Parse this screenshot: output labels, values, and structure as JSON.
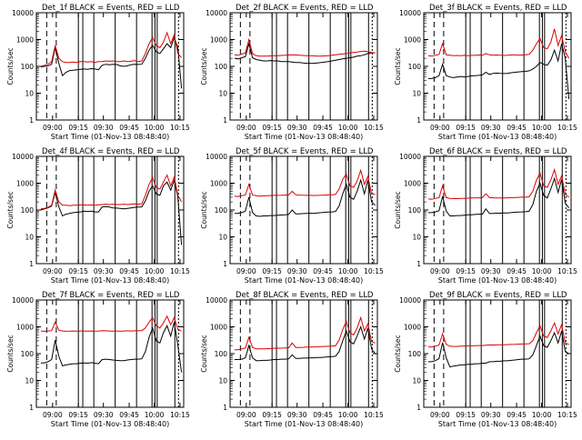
{
  "figure": {
    "ylabel": "Counts/sec",
    "xlabel": "Start Time (01-Nov-13 08:48:40)",
    "x_ticks": [
      "09:00",
      "09:15",
      "09:30",
      "09:45",
      "10:00",
      "10:15"
    ],
    "y_ticks": [
      "1",
      "10",
      "100",
      "1000",
      "10000"
    ],
    "colors": {
      "events": "#000000",
      "lld": "#dd0000",
      "axes": "#000000",
      "background": "#ffffff"
    }
  },
  "chart_data": [
    {
      "type": "line",
      "title": "Det_1f BLACK = Events, RED = LLD",
      "ylim": [
        1,
        10000
      ],
      "yscale": "log",
      "series": [
        {
          "name": "Events",
          "values": [
            95,
            100,
            105,
            120,
            500,
            130,
            45,
            60,
            70,
            72,
            75,
            78,
            80,
            78,
            82,
            80,
            75,
            110,
            120,
            115,
            120,
            118,
            105,
            100,
            105,
            115,
            120,
            118,
            120,
            200,
            400,
            600,
            350,
            300,
            450,
            700,
            500,
            1200,
            500,
            15
          ]
        },
        {
          "name": "LLD",
          "values": [
            100,
            110,
            120,
            150,
            600,
            200,
            150,
            140,
            140,
            145,
            140,
            150,
            150,
            145,
            150,
            140,
            150,
            150,
            160,
            155,
            160,
            150,
            150,
            160,
            150,
            155,
            165,
            150,
            160,
            300,
            700,
            1200,
            600,
            500,
            800,
            1800,
            700,
            1500,
            300,
            210
          ]
        }
      ]
    },
    {
      "type": "line",
      "title": "Det_2f BLACK = Events, RED = LLD",
      "ylim": [
        1,
        10000
      ],
      "yscale": "log",
      "series": [
        {
          "name": "Events",
          "values": [
            200,
            190,
            210,
            230,
            700,
            210,
            180,
            170,
            160,
            160,
            165,
            160,
            160,
            150,
            150,
            150,
            145,
            140,
            140,
            135,
            130,
            130,
            130,
            135,
            140,
            145,
            150,
            160,
            170,
            180,
            190,
            200,
            210,
            220,
            240,
            250,
            270,
            300,
            320,
            320
          ]
        },
        {
          "name": "LLD",
          "values": [
            270,
            260,
            290,
            310,
            1000,
            300,
            250,
            240,
            240,
            240,
            245,
            250,
            250,
            255,
            260,
            265,
            270,
            265,
            260,
            255,
            250,
            250,
            245,
            240,
            240,
            245,
            250,
            260,
            270,
            280,
            290,
            300,
            320,
            330,
            340,
            360,
            370,
            350,
            330,
            320
          ]
        }
      ]
    },
    {
      "type": "line",
      "title": "Det_3f BLACK = Events, RED = LLD",
      "ylim": [
        1,
        10000
      ],
      "yscale": "log",
      "series": [
        {
          "name": "Events",
          "values": [
            35,
            35,
            38,
            45,
            120,
            45,
            40,
            38,
            40,
            42,
            40,
            42,
            44,
            45,
            46,
            48,
            60,
            50,
            55,
            56,
            55,
            54,
            55,
            58,
            60,
            62,
            64,
            65,
            68,
            80,
            100,
            140,
            120,
            110,
            170,
            400,
            160,
            700,
            200,
            6
          ]
        },
        {
          "name": "LLD",
          "values": [
            250,
            240,
            260,
            280,
            700,
            270,
            260,
            250,
            255,
            250,
            260,
            250,
            255,
            260,
            265,
            260,
            300,
            270,
            260,
            265,
            260,
            255,
            260,
            265,
            270,
            260,
            265,
            270,
            280,
            400,
            700,
            1100,
            500,
            450,
            800,
            2500,
            600,
            1400,
            350,
            200
          ]
        }
      ]
    },
    {
      "type": "line",
      "title": "Det_4f BLACK = Events, RED = LLD",
      "ylim": [
        1,
        10000
      ],
      "yscale": "log",
      "series": [
        {
          "name": "Events",
          "values": [
            100,
            110,
            120,
            140,
            450,
            130,
            60,
            70,
            75,
            80,
            82,
            85,
            90,
            88,
            90,
            85,
            85,
            130,
            135,
            130,
            120,
            118,
            115,
            110,
            115,
            120,
            125,
            128,
            130,
            220,
            500,
            800,
            400,
            350,
            800,
            1100,
            550,
            1300,
            300,
            5
          ]
        },
        {
          "name": "LLD",
          "values": [
            110,
            115,
            125,
            150,
            550,
            200,
            150,
            150,
            145,
            150,
            150,
            155,
            155,
            150,
            155,
            150,
            155,
            160,
            165,
            160,
            165,
            160,
            160,
            165,
            160,
            165,
            170,
            165,
            170,
            350,
            900,
            1600,
            700,
            600,
            1100,
            2000,
            800,
            1700,
            350,
            200
          ]
        }
      ]
    },
    {
      "type": "line",
      "title": "Det_5f BLACK = Events, RED = LLD",
      "ylim": [
        1,
        10000
      ],
      "yscale": "log",
      "series": [
        {
          "name": "Events",
          "values": [
            75,
            75,
            80,
            90,
            300,
            80,
            60,
            58,
            60,
            60,
            62,
            62,
            64,
            65,
            66,
            68,
            100,
            72,
            72,
            74,
            75,
            76,
            75,
            78,
            80,
            82,
            84,
            85,
            88,
            140,
            400,
            900,
            300,
            250,
            500,
            1300,
            400,
            1300,
            200,
            150
          ]
        },
        {
          "name": "LLD",
          "values": [
            330,
            320,
            340,
            360,
            900,
            360,
            340,
            330,
            335,
            340,
            345,
            350,
            350,
            355,
            360,
            365,
            500,
            370,
            360,
            355,
            350,
            350,
            345,
            350,
            355,
            360,
            365,
            370,
            380,
            600,
            1400,
            2200,
            800,
            700,
            1200,
            3000,
            900,
            1800,
            400,
            380
          ]
        }
      ]
    },
    {
      "type": "line",
      "title": "Det_6f BLACK = Events, RED = LLD",
      "ylim": [
        1,
        10000
      ],
      "yscale": "log",
      "series": [
        {
          "name": "Events",
          "values": [
            80,
            80,
            85,
            95,
            320,
            90,
            60,
            60,
            62,
            62,
            64,
            66,
            66,
            68,
            70,
            70,
            110,
            74,
            75,
            76,
            76,
            77,
            78,
            80,
            82,
            84,
            85,
            86,
            90,
            160,
            500,
            1000,
            350,
            280,
            600,
            1500,
            450,
            1400,
            180,
            120
          ]
        },
        {
          "name": "LLD",
          "values": [
            260,
            250,
            270,
            290,
            800,
            290,
            270,
            265,
            265,
            270,
            270,
            275,
            280,
            280,
            285,
            290,
            400,
            290,
            285,
            280,
            280,
            280,
            285,
            290,
            290,
            295,
            300,
            300,
            310,
            500,
            1300,
            2400,
            800,
            700,
            1300,
            3200,
            900,
            1900,
            380,
            300
          ]
        }
      ]
    },
    {
      "type": "line",
      "title": "Det_7f BLACK = Events, RED = LLD",
      "ylim": [
        1,
        10000
      ],
      "yscale": "log",
      "series": [
        {
          "name": "Events",
          "values": [
            45,
            45,
            50,
            60,
            320,
            80,
            35,
            38,
            40,
            42,
            42,
            44,
            45,
            44,
            46,
            44,
            42,
            60,
            62,
            60,
            58,
            56,
            55,
            55,
            58,
            60,
            62,
            62,
            64,
            120,
            400,
            900,
            300,
            250,
            600,
            1100,
            450,
            1500,
            200,
            20
          ]
        },
        {
          "name": "LLD",
          "values": [
            700,
            680,
            700,
            720,
            1500,
            750,
            700,
            680,
            690,
            700,
            690,
            700,
            700,
            690,
            700,
            690,
            700,
            720,
            710,
            700,
            690,
            700,
            690,
            700,
            710,
            700,
            710,
            720,
            720,
            900,
            1500,
            2200,
            1100,
            900,
            1400,
            2500,
            1200,
            2200,
            800,
            700
          ]
        }
      ]
    },
    {
      "type": "line",
      "title": "Det_8f BLACK = Events, RED = LLD",
      "ylim": [
        1,
        10000
      ],
      "yscale": "log",
      "series": [
        {
          "name": "Events",
          "values": [
            60,
            60,
            62,
            70,
            200,
            70,
            55,
            55,
            56,
            56,
            58,
            60,
            60,
            62,
            62,
            64,
            90,
            66,
            66,
            68,
            68,
            70,
            70,
            72,
            72,
            74,
            76,
            78,
            80,
            120,
            300,
            700,
            280,
            230,
            450,
            1000,
            350,
            900,
            150,
            100
          ]
        },
        {
          "name": "LLD",
          "values": [
            140,
            140,
            150,
            160,
            400,
            170,
            150,
            150,
            150,
            152,
            155,
            158,
            160,
            160,
            162,
            165,
            250,
            170,
            170,
            172,
            175,
            175,
            178,
            180,
            182,
            185,
            188,
            190,
            195,
            320,
            800,
            1600,
            600,
            500,
            900,
            2200,
            700,
            1300,
            280,
            250
          ]
        }
      ]
    },
    {
      "type": "line",
      "title": "Det_9f BLACK = Events, RED = LLD",
      "ylim": [
        1,
        10000
      ],
      "yscale": "log",
      "series": [
        {
          "name": "Events",
          "values": [
            50,
            50,
            55,
            65,
            260,
            70,
            32,
            34,
            36,
            38,
            38,
            40,
            40,
            42,
            42,
            44,
            44,
            50,
            50,
            52,
            52,
            54,
            54,
            56,
            58,
            60,
            62,
            62,
            64,
            90,
            200,
            450,
            200,
            170,
            300,
            600,
            250,
            700,
            120,
            100
          ]
        },
        {
          "name": "LLD",
          "values": [
            180,
            175,
            190,
            210,
            550,
            220,
            190,
            185,
            185,
            190,
            190,
            195,
            195,
            198,
            200,
            200,
            205,
            210,
            210,
            212,
            214,
            215,
            218,
            220,
            222,
            225,
            228,
            230,
            235,
            300,
            600,
            1100,
            450,
            400,
            700,
            1400,
            550,
            1200,
            250,
            220
          ]
        }
      ]
    }
  ]
}
